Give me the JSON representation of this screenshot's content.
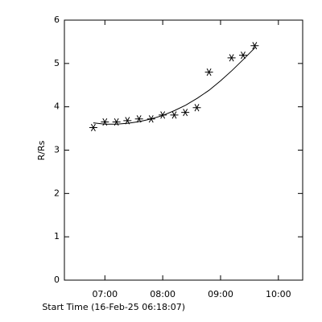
{
  "chart_data": {
    "type": "scatter",
    "xlabel": "Start Time (16-Feb-25 06:18:07)",
    "ylabel": "R/Rs",
    "xlim": [
      6.3,
      10.42
    ],
    "ylim": [
      0,
      6
    ],
    "xticks": [
      {
        "value": 7,
        "label": "07:00"
      },
      {
        "value": 8,
        "label": "08:00"
      },
      {
        "value": 9,
        "label": "09:00"
      },
      {
        "value": 10,
        "label": "10:00"
      }
    ],
    "yticks": [
      0,
      1,
      2,
      3,
      4,
      5,
      6
    ],
    "series": [
      {
        "style": "asterisk",
        "color": "#000000",
        "x": [
          6.8,
          7.0,
          7.2,
          7.39,
          7.59,
          7.8,
          8.0,
          8.2,
          8.39,
          8.59,
          8.8,
          9.19,
          9.39,
          9.59
        ],
        "values": [
          3.52,
          3.65,
          3.65,
          3.68,
          3.72,
          3.72,
          3.81,
          3.81,
          3.87,
          3.98,
          4.8,
          5.13,
          5.19,
          5.41
        ]
      },
      {
        "style": "line",
        "color": "#000000",
        "x": [
          6.8,
          7.0,
          7.2,
          7.4,
          7.6,
          7.8,
          8.0,
          8.2,
          8.4,
          8.6,
          8.8,
          9.0,
          9.2,
          9.4,
          9.6
        ],
        "values": [
          3.63,
          3.6,
          3.6,
          3.62,
          3.66,
          3.72,
          3.8,
          3.91,
          4.04,
          4.2,
          4.38,
          4.6,
          4.84,
          5.1,
          5.37
        ]
      }
    ]
  }
}
